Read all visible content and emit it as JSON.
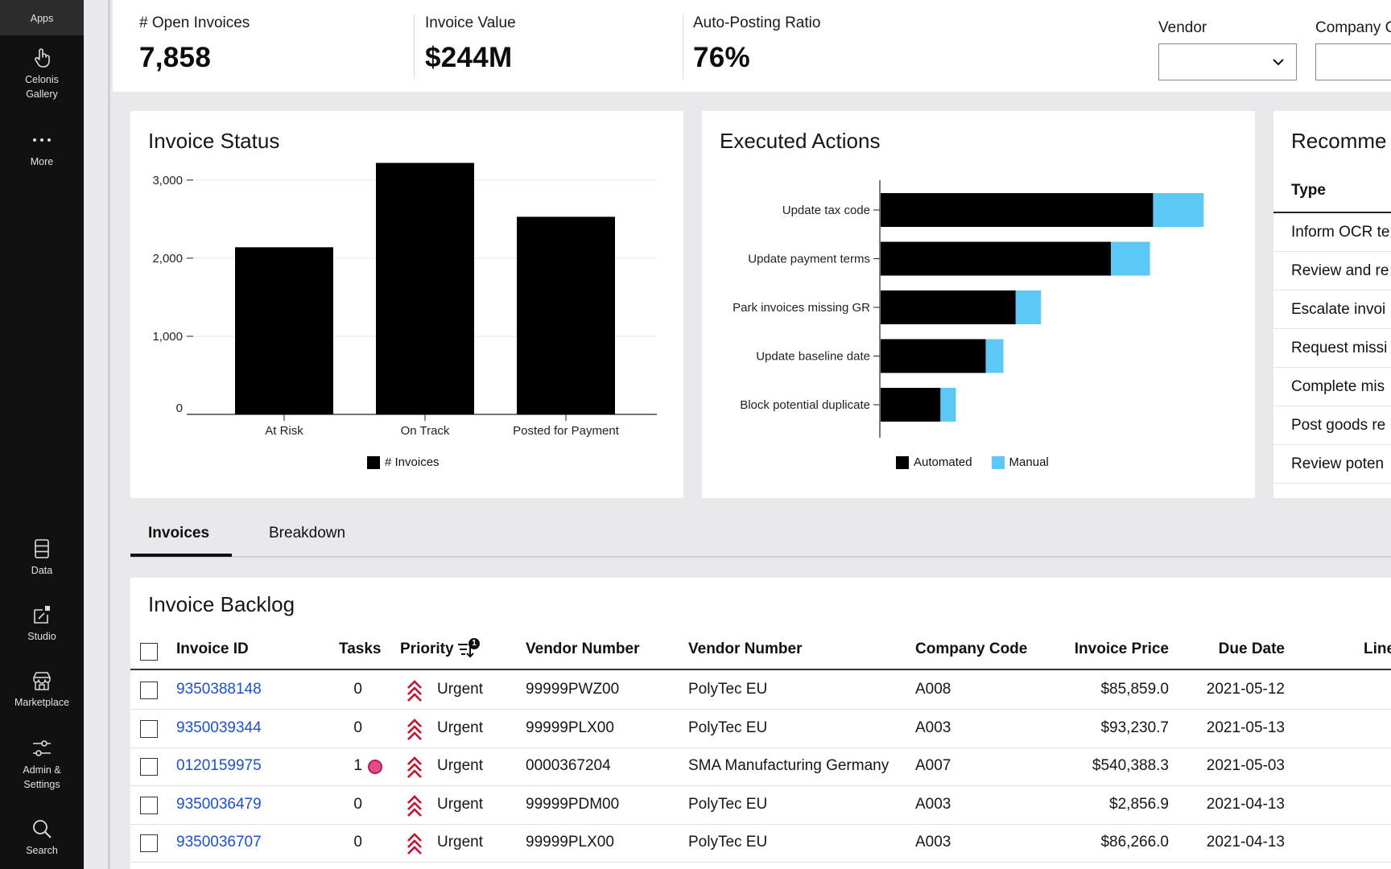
{
  "sidebar": {
    "items": [
      {
        "label": "Apps",
        "icon": "apps-icon"
      },
      {
        "label": "Celonis\nGallery",
        "icon": "hand-pointer-icon"
      },
      {
        "label": "More",
        "icon": "more-dots-icon"
      },
      {
        "label": "Data",
        "icon": "database-icon"
      },
      {
        "label": "Studio",
        "icon": "studio-icon"
      },
      {
        "label": "Marketplace",
        "icon": "marketplace-icon"
      },
      {
        "label": "Admin &\nSettings",
        "icon": "sliders-icon"
      },
      {
        "label": "Search",
        "icon": "search-icon"
      }
    ]
  },
  "kpis": [
    {
      "label": "# Open Invoices",
      "value": "7,858"
    },
    {
      "label": "Invoice Value",
      "value": "$244M"
    },
    {
      "label": "Auto-Posting Ratio",
      "value": "76%"
    }
  ],
  "filters": [
    {
      "label": "Vendor",
      "value": ""
    },
    {
      "label": "Company C",
      "value": ""
    }
  ],
  "invoice_status": {
    "title": "Invoice Status",
    "legend": "# Invoices"
  },
  "executed_actions": {
    "title": "Executed Actions",
    "legend": [
      "Automated",
      "Manual"
    ]
  },
  "chart_data": [
    {
      "type": "bar",
      "title": "Invoice Status",
      "categories": [
        "At Risk",
        "On Track",
        "Posted for Payment"
      ],
      "series": [
        {
          "name": "# Invoices",
          "values": [
            2140,
            3220,
            2530
          ]
        }
      ],
      "yticks": [
        "0",
        "1,000",
        "2,000",
        "3,000"
      ],
      "ylim": [
        0,
        3400
      ],
      "color": "#000000",
      "grid": true,
      "legend_position": "bottom"
    },
    {
      "type": "bar",
      "orientation": "horizontal",
      "stacked": true,
      "title": "Executed Actions",
      "categories": [
        "Update tax code",
        "Update payment terms",
        "Park invoices missing GR",
        "Update baseline date",
        "Block potential duplicate"
      ],
      "series": [
        {
          "name": "Automated",
          "values": [
            355,
            300,
            176,
            137,
            78
          ],
          "color": "#000000"
        },
        {
          "name": "Manual",
          "values": [
            66,
            51,
            33,
            23,
            20
          ],
          "color": "#5bc8f5"
        }
      ],
      "xlim": [
        0,
        450
      ],
      "legend_position": "bottom"
    }
  ],
  "recommendations": {
    "title": "Recomme",
    "column": "Type",
    "rows": [
      "Inform OCR te",
      "Review and re",
      "Escalate invoi",
      "Request missi",
      "Complete mis",
      "Post goods re",
      "Review poten"
    ]
  },
  "tabs": [
    "Invoices",
    "Breakdown"
  ],
  "backlog": {
    "title": "Invoice Backlog",
    "columns": [
      "Invoice ID",
      "Tasks",
      "Priority",
      "Vendor Number",
      "Vendor Number",
      "Company Code",
      "Invoice Price",
      "Due Date",
      "Line"
    ],
    "sort_badge": "1",
    "rows": [
      {
        "id": "9350388148",
        "tasks": "0",
        "dot": false,
        "priority": "Urgent",
        "vendor_no": "99999PWZ00",
        "vendor": "PolyTec EU",
        "company": "A008",
        "price": "$85,859.0",
        "due": "2021-05-12"
      },
      {
        "id": "9350039344",
        "tasks": "0",
        "dot": false,
        "priority": "Urgent",
        "vendor_no": "99999PLX00",
        "vendor": "PolyTec EU",
        "company": "A003",
        "price": "$93,230.7",
        "due": "2021-05-13"
      },
      {
        "id": "0120159975",
        "tasks": "1",
        "dot": true,
        "priority": "Urgent",
        "vendor_no": "0000367204",
        "vendor": "SMA Manufacturing Germany",
        "company": "A007",
        "price": "$540,388.3",
        "due": "2021-05-03"
      },
      {
        "id": "9350036479",
        "tasks": "0",
        "dot": false,
        "priority": "Urgent",
        "vendor_no": "99999PDM00",
        "vendor": "PolyTec EU",
        "company": "A003",
        "price": "$2,856.9",
        "due": "2021-04-13"
      },
      {
        "id": "9350036707",
        "tasks": "0",
        "dot": false,
        "priority": "Urgent",
        "vendor_no": "99999PLX00",
        "vendor": "PolyTec EU",
        "company": "A003",
        "price": "$86,266.0",
        "due": "2021-04-13"
      }
    ]
  }
}
